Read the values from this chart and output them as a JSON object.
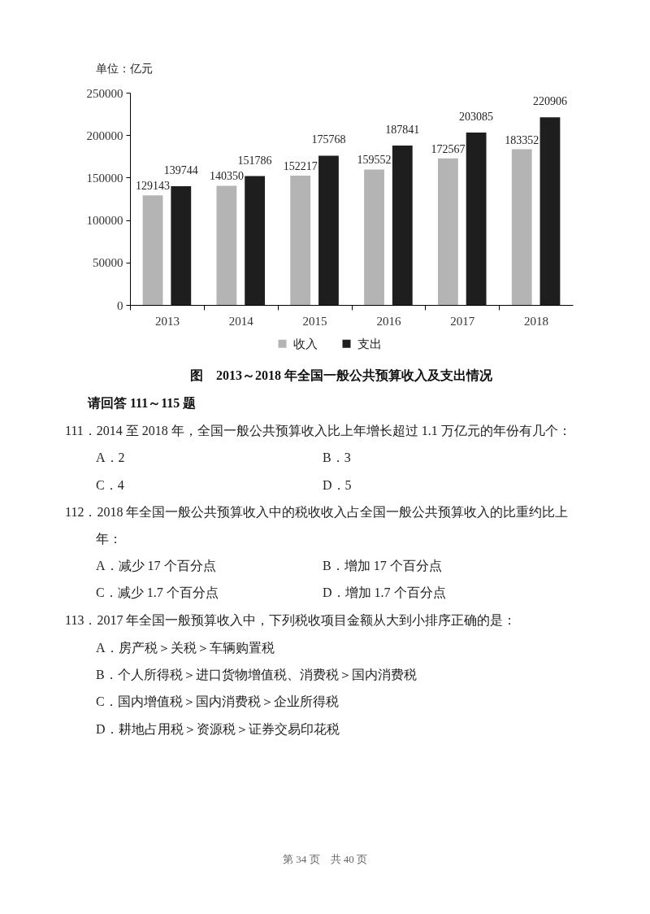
{
  "chart_data": {
    "type": "bar",
    "title": "图　2013～2018 年全国一般公共预算收入及支出情况",
    "ylabel": "单位：亿元",
    "categories": [
      "2013",
      "2014",
      "2015",
      "2016",
      "2017",
      "2018"
    ],
    "series": [
      {
        "name": "收入",
        "color": "#b4b4b4",
        "values": [
          129143,
          140350,
          152217,
          159552,
          172567,
          183352
        ]
      },
      {
        "name": "支出",
        "color": "#1e1e1e",
        "values": [
          139744,
          151786,
          175768,
          187841,
          203085,
          220906
        ]
      }
    ],
    "ylim": [
      0,
      250000
    ],
    "yticks": [
      0,
      50000,
      100000,
      150000,
      200000,
      250000
    ],
    "grid": false,
    "legend": "bottom",
    "data_labels": true,
    "annotations": [
      "请回答 111～115 题",
      "111．2014 至 2018 年，全国一般公共预算收入比上年增长超过 1.1 万亿元的年份有几个：",
      "A．2",
      "B．3",
      "C．4",
      "D．5",
      "112．2018 年全国一般公共预算收入中的税收收入占全国一般公共预算收入的比重约比上",
      "年：",
      "A．减少 17 个百分点",
      "B．增加 17 个百分点",
      "C．减少 1.7 个百分点",
      "D．增加 1.7 个百分点",
      "113．2017 年全国一般预算收入中，下列税收项目金额从大到小排序正确的是：",
      "A．房产税＞关税＞车辆购置税",
      "B．个人所得税＞进口货物增值税、消费税＞国内消费税",
      "C．国内增值税＞国内消费税＞企业所得税",
      "D．耕地占用税＞资源税＞证券交易印花税",
      "第 34 页　共 40 页"
    ]
  }
}
